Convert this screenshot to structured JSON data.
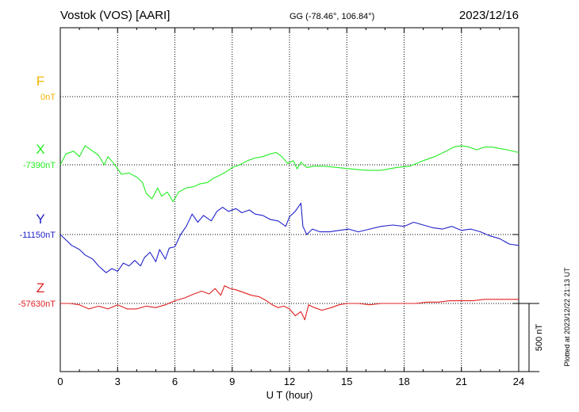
{
  "header": {
    "station": "Vostok (VOS)  [AARI]",
    "coords": "GG (-78.46°, 106.84°)",
    "date": "2023/12/16"
  },
  "side_note": "Plotted at 2023/12/22 21:13 UT",
  "chart_data": {
    "type": "line",
    "xlabel": "U T (hour)",
    "xlim": [
      0,
      24
    ],
    "xticks": [
      "0",
      "3",
      "6",
      "9",
      "12",
      "15",
      "18",
      "21",
      "24"
    ],
    "scale_bar": {
      "label": "500 nT",
      "value_nT": 500
    },
    "series": [
      {
        "name": "F",
        "baseline_label": "0nT",
        "baseline_nT": 0,
        "color": "#f0b400",
        "points": []
      },
      {
        "name": "X",
        "baseline_label": "-7390nT",
        "baseline_nT": -7390,
        "color": "#22ee22",
        "points": [
          [
            0,
            -7390
          ],
          [
            0.3,
            -7310
          ],
          [
            0.7,
            -7290
          ],
          [
            1.0,
            -7330
          ],
          [
            1.3,
            -7250
          ],
          [
            1.6,
            -7280
          ],
          [
            2.0,
            -7320
          ],
          [
            2.3,
            -7390
          ],
          [
            2.5,
            -7330
          ],
          [
            2.8,
            -7380
          ],
          [
            3.0,
            -7420
          ],
          [
            3.2,
            -7460
          ],
          [
            3.6,
            -7450
          ],
          [
            4.0,
            -7480
          ],
          [
            4.3,
            -7520
          ],
          [
            4.5,
            -7600
          ],
          [
            4.8,
            -7640
          ],
          [
            5.1,
            -7560
          ],
          [
            5.3,
            -7620
          ],
          [
            5.6,
            -7590
          ],
          [
            5.9,
            -7660
          ],
          [
            6.2,
            -7590
          ],
          [
            6.6,
            -7560
          ],
          [
            7.0,
            -7550
          ],
          [
            7.3,
            -7530
          ],
          [
            7.7,
            -7520
          ],
          [
            8.0,
            -7490
          ],
          [
            8.3,
            -7470
          ],
          [
            8.7,
            -7440
          ],
          [
            9.0,
            -7410
          ],
          [
            9.4,
            -7390
          ],
          [
            9.8,
            -7360
          ],
          [
            10.2,
            -7340
          ],
          [
            10.6,
            -7330
          ],
          [
            11.0,
            -7310
          ],
          [
            11.3,
            -7300
          ],
          [
            11.6,
            -7330
          ],
          [
            11.9,
            -7380
          ],
          [
            12.2,
            -7360
          ],
          [
            12.4,
            -7420
          ],
          [
            12.6,
            -7370
          ],
          [
            12.9,
            -7410
          ],
          [
            13.3,
            -7400
          ],
          [
            13.8,
            -7400
          ],
          [
            14.5,
            -7410
          ],
          [
            15.2,
            -7420
          ],
          [
            16.0,
            -7430
          ],
          [
            16.8,
            -7430
          ],
          [
            17.6,
            -7410
          ],
          [
            18.3,
            -7400
          ],
          [
            19.0,
            -7360
          ],
          [
            19.6,
            -7330
          ],
          [
            20.2,
            -7290
          ],
          [
            20.6,
            -7260
          ],
          [
            21.0,
            -7250
          ],
          [
            21.4,
            -7260
          ],
          [
            21.8,
            -7280
          ],
          [
            22.2,
            -7260
          ],
          [
            22.6,
            -7260
          ],
          [
            23.0,
            -7270
          ],
          [
            23.4,
            -7280
          ],
          [
            24.0,
            -7300
          ]
        ]
      },
      {
        "name": "Y",
        "baseline_label": "-11150nT",
        "baseline_nT": -11150,
        "color": "#2222cc",
        "points": [
          [
            0,
            -11150
          ],
          [
            0.3,
            -11190
          ],
          [
            0.6,
            -11230
          ],
          [
            1.0,
            -11260
          ],
          [
            1.3,
            -11300
          ],
          [
            1.7,
            -11330
          ],
          [
            2.0,
            -11380
          ],
          [
            2.4,
            -11430
          ],
          [
            2.7,
            -11400
          ],
          [
            3.0,
            -11420
          ],
          [
            3.3,
            -11360
          ],
          [
            3.6,
            -11380
          ],
          [
            3.9,
            -11340
          ],
          [
            4.2,
            -11380
          ],
          [
            4.4,
            -11320
          ],
          [
            4.7,
            -11280
          ],
          [
            5.0,
            -11350
          ],
          [
            5.2,
            -11260
          ],
          [
            5.5,
            -11330
          ],
          [
            5.7,
            -11250
          ],
          [
            6.0,
            -11240
          ],
          [
            6.3,
            -11150
          ],
          [
            6.6,
            -11090
          ],
          [
            6.9,
            -11000
          ],
          [
            7.2,
            -11060
          ],
          [
            7.5,
            -11010
          ],
          [
            7.9,
            -11050
          ],
          [
            8.2,
            -10980
          ],
          [
            8.5,
            -10950
          ],
          [
            8.8,
            -10980
          ],
          [
            9.2,
            -10960
          ],
          [
            9.5,
            -10990
          ],
          [
            9.9,
            -10970
          ],
          [
            10.2,
            -11000
          ],
          [
            10.6,
            -11010
          ],
          [
            11.0,
            -11040
          ],
          [
            11.4,
            -11050
          ],
          [
            11.8,
            -11090
          ],
          [
            12.0,
            -11020
          ],
          [
            12.3,
            -10980
          ],
          [
            12.6,
            -10920
          ],
          [
            12.7,
            -11090
          ],
          [
            12.9,
            -11150
          ],
          [
            13.2,
            -11110
          ],
          [
            13.6,
            -11130
          ],
          [
            14.1,
            -11130
          ],
          [
            14.6,
            -11120
          ],
          [
            15.1,
            -11110
          ],
          [
            15.6,
            -11130
          ],
          [
            16.2,
            -11110
          ],
          [
            16.8,
            -11090
          ],
          [
            17.4,
            -11080
          ],
          [
            18.0,
            -11090
          ],
          [
            18.5,
            -11060
          ],
          [
            19.0,
            -11080
          ],
          [
            19.5,
            -11100
          ],
          [
            20.0,
            -11110
          ],
          [
            20.5,
            -11090
          ],
          [
            21.0,
            -11120
          ],
          [
            21.5,
            -11110
          ],
          [
            22.0,
            -11130
          ],
          [
            22.5,
            -11160
          ],
          [
            23.0,
            -11180
          ],
          [
            23.5,
            -11220
          ],
          [
            24.0,
            -11230
          ]
        ]
      },
      {
        "name": "Z",
        "baseline_label": "-57630nT",
        "baseline_nT": -57630,
        "color": "#e02020",
        "points": [
          [
            0,
            -57630
          ],
          [
            0.5,
            -57630
          ],
          [
            1.0,
            -57640
          ],
          [
            1.5,
            -57670
          ],
          [
            2.0,
            -57650
          ],
          [
            2.5,
            -57670
          ],
          [
            3.0,
            -57640
          ],
          [
            3.5,
            -57670
          ],
          [
            4.0,
            -57670
          ],
          [
            4.5,
            -57650
          ],
          [
            5.0,
            -57660
          ],
          [
            5.5,
            -57640
          ],
          [
            6.0,
            -57610
          ],
          [
            6.5,
            -57590
          ],
          [
            7.0,
            -57560
          ],
          [
            7.4,
            -57540
          ],
          [
            7.8,
            -57560
          ],
          [
            8.1,
            -57520
          ],
          [
            8.4,
            -57570
          ],
          [
            8.6,
            -57500
          ],
          [
            8.9,
            -57520
          ],
          [
            9.2,
            -57530
          ],
          [
            9.6,
            -57550
          ],
          [
            10.0,
            -57570
          ],
          [
            10.4,
            -57580
          ],
          [
            10.8,
            -57610
          ],
          [
            11.1,
            -57640
          ],
          [
            11.4,
            -57660
          ],
          [
            11.7,
            -57650
          ],
          [
            12.0,
            -57670
          ],
          [
            12.3,
            -57720
          ],
          [
            12.6,
            -57690
          ],
          [
            12.8,
            -57750
          ],
          [
            13.0,
            -57640
          ],
          [
            13.3,
            -57660
          ],
          [
            13.7,
            -57680
          ],
          [
            14.2,
            -57660
          ],
          [
            14.6,
            -57640
          ],
          [
            15.0,
            -57630
          ],
          [
            15.6,
            -57630
          ],
          [
            16.2,
            -57640
          ],
          [
            16.8,
            -57630
          ],
          [
            17.4,
            -57630
          ],
          [
            18.0,
            -57630
          ],
          [
            18.6,
            -57630
          ],
          [
            19.2,
            -57620
          ],
          [
            19.8,
            -57620
          ],
          [
            20.4,
            -57610
          ],
          [
            21.0,
            -57610
          ],
          [
            21.6,
            -57610
          ],
          [
            22.2,
            -57600
          ],
          [
            22.8,
            -57600
          ],
          [
            23.4,
            -57600
          ],
          [
            24.0,
            -57600
          ]
        ]
      }
    ]
  }
}
